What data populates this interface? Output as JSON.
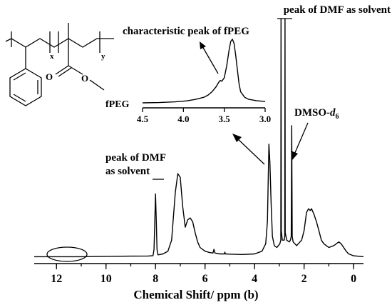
{
  "chart_data": {
    "type": "line",
    "xlabel": "Chemical Shift/ ppm (b)",
    "ylabel": "",
    "x_reversed": true,
    "xlim": [
      12.9,
      -0.4
    ],
    "x_ticks": [
      12,
      10,
      8,
      6,
      4,
      2,
      0
    ],
    "grid": false,
    "legend": "none",
    "series": [
      {
        "points": [
          [
            12.9,
            0.01
          ],
          [
            12.0,
            0.01
          ],
          [
            11.0,
            0.01
          ],
          [
            10.0,
            0.012
          ],
          [
            9.0,
            0.013
          ],
          [
            8.3,
            0.014
          ],
          [
            8.1,
            0.016
          ],
          [
            8.06,
            0.05
          ],
          [
            8.03,
            0.2
          ],
          [
            8.0,
            0.35
          ],
          [
            7.97,
            0.2
          ],
          [
            7.94,
            0.05
          ],
          [
            7.9,
            0.02
          ],
          [
            7.7,
            0.025
          ],
          [
            7.5,
            0.04
          ],
          [
            7.35,
            0.1
          ],
          [
            7.2,
            0.36
          ],
          [
            7.1,
            0.46
          ],
          [
            7.0,
            0.44
          ],
          [
            6.9,
            0.28
          ],
          [
            6.8,
            0.17
          ],
          [
            6.7,
            0.21
          ],
          [
            6.6,
            0.22
          ],
          [
            6.5,
            0.2
          ],
          [
            6.4,
            0.14
          ],
          [
            6.3,
            0.09
          ],
          [
            6.2,
            0.06
          ],
          [
            6.0,
            0.04
          ],
          [
            5.8,
            0.032
          ],
          [
            5.68,
            0.03
          ],
          [
            5.64,
            0.05
          ],
          [
            5.6,
            0.03
          ],
          [
            5.4,
            0.025
          ],
          [
            5.22,
            0.025
          ],
          [
            5.2,
            0.035
          ],
          [
            5.18,
            0.025
          ],
          [
            5.0,
            0.024
          ],
          [
            4.5,
            0.022
          ],
          [
            4.0,
            0.025
          ],
          [
            3.7,
            0.04
          ],
          [
            3.55,
            0.08
          ],
          [
            3.48,
            0.2
          ],
          [
            3.42,
            0.62
          ],
          [
            3.38,
            0.52
          ],
          [
            3.33,
            0.3
          ],
          [
            3.28,
            0.12
          ],
          [
            3.2,
            0.07
          ],
          [
            3.1,
            0.06
          ],
          [
            2.98,
            0.08
          ],
          [
            2.94,
            0.1
          ],
          [
            2.93,
            1.3
          ],
          [
            2.92,
            0.15
          ],
          [
            2.88,
            0.1
          ],
          [
            2.8,
            0.1
          ],
          [
            2.78,
            0.12
          ],
          [
            2.77,
            1.3
          ],
          [
            2.76,
            0.14
          ],
          [
            2.7,
            0.1
          ],
          [
            2.6,
            0.09
          ],
          [
            2.55,
            0.1
          ],
          [
            2.52,
            0.12
          ],
          [
            2.5,
            0.72
          ],
          [
            2.48,
            0.12
          ],
          [
            2.44,
            0.09
          ],
          [
            2.3,
            0.07
          ],
          [
            2.1,
            0.1
          ],
          [
            2.0,
            0.15
          ],
          [
            1.9,
            0.25
          ],
          [
            1.82,
            0.27
          ],
          [
            1.75,
            0.26
          ],
          [
            1.7,
            0.27
          ],
          [
            1.6,
            0.24
          ],
          [
            1.5,
            0.2
          ],
          [
            1.4,
            0.15
          ],
          [
            1.3,
            0.1
          ],
          [
            1.2,
            0.08
          ],
          [
            1.1,
            0.07
          ],
          [
            1.0,
            0.06
          ],
          [
            0.9,
            0.065
          ],
          [
            0.8,
            0.07
          ],
          [
            0.7,
            0.08
          ],
          [
            0.6,
            0.09
          ],
          [
            0.5,
            0.08
          ],
          [
            0.4,
            0.06
          ],
          [
            0.3,
            0.04
          ],
          [
            0.2,
            0.025
          ],
          [
            0.0,
            0.015
          ],
          [
            -0.4,
            0.01
          ]
        ]
      }
    ],
    "inset": {
      "type": "line",
      "xlim": [
        4.5,
        3.0
      ],
      "x_reversed": true,
      "x_ticks": [
        4.5,
        4.0,
        3.5,
        3.0
      ],
      "label": "characteristic peak of fPEG",
      "points": [
        [
          4.5,
          0.02
        ],
        [
          4.3,
          0.025
        ],
        [
          4.1,
          0.035
        ],
        [
          3.95,
          0.05
        ],
        [
          3.85,
          0.07
        ],
        [
          3.75,
          0.1
        ],
        [
          3.7,
          0.13
        ],
        [
          3.65,
          0.18
        ],
        [
          3.6,
          0.25
        ],
        [
          3.57,
          0.31
        ],
        [
          3.55,
          0.34
        ],
        [
          3.53,
          0.33
        ],
        [
          3.5,
          0.38
        ],
        [
          3.47,
          0.55
        ],
        [
          3.44,
          0.78
        ],
        [
          3.42,
          0.9
        ],
        [
          3.4,
          0.93
        ],
        [
          3.38,
          0.87
        ],
        [
          3.36,
          0.7
        ],
        [
          3.34,
          0.5
        ],
        [
          3.32,
          0.3
        ],
        [
          3.3,
          0.18
        ],
        [
          3.25,
          0.1
        ],
        [
          3.2,
          0.07
        ],
        [
          3.1,
          0.05
        ],
        [
          3.0,
          0.04
        ]
      ]
    },
    "annotations": [
      {
        "text": "peak of DMF as solvent",
        "target": "2.85 ppm"
      },
      {
        "text": "DMSO-",
        "sub": "6",
        "italic": "d",
        "target": "2.5 ppm"
      },
      {
        "text_line1": "peak of DMF",
        "text_line2": "as solvent",
        "target": "8.0 ppm"
      }
    ],
    "structure_labels": {
      "x": "x",
      "y": "y",
      "group": "fPEG"
    }
  }
}
